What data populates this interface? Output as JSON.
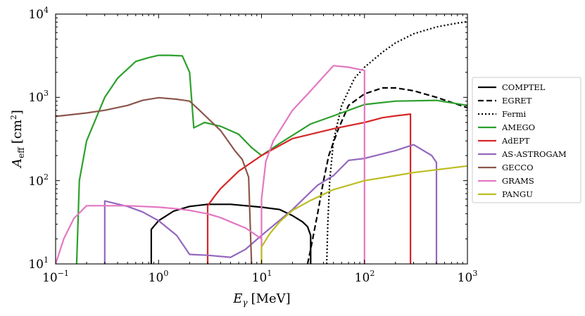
{
  "chart_data": {
    "type": "line",
    "xscale": "log",
    "yscale": "log",
    "xlim": [
      0.1,
      1000
    ],
    "ylim": [
      10,
      10000
    ],
    "x_ticks": [
      {
        "value": 0.1,
        "base": "10",
        "exp": "−1"
      },
      {
        "value": 1,
        "base": "10",
        "exp": "0"
      },
      {
        "value": 10,
        "base": "10",
        "exp": "1"
      },
      {
        "value": 100,
        "base": "10",
        "exp": "2"
      },
      {
        "value": 1000,
        "base": "10",
        "exp": "3"
      }
    ],
    "y_ticks": [
      {
        "value": 10,
        "base": "10",
        "exp": "1"
      },
      {
        "value": 100,
        "base": "10",
        "exp": "2"
      },
      {
        "value": 1000,
        "base": "10",
        "exp": "3"
      },
      {
        "value": 10000,
        "base": "10",
        "exp": "4"
      }
    ],
    "xlabel": {
      "symbol": "E",
      "sub": "γ",
      "unit": "[MeV]"
    },
    "ylabel": {
      "symbol": "A",
      "sub": "eff",
      "unit_open": "[cm",
      "unit_sup": "2",
      "unit_close": "]"
    },
    "legend_position": "outside-right",
    "series": [
      {
        "name": "COMPTEL",
        "color": "#000000",
        "dash": "solid",
        "points": [
          [
            0.85,
            10
          ],
          [
            0.85,
            26
          ],
          [
            1.0,
            33
          ],
          [
            1.4,
            43
          ],
          [
            2.0,
            49
          ],
          [
            3.0,
            52
          ],
          [
            5.0,
            52
          ],
          [
            10,
            48
          ],
          [
            15,
            45
          ],
          [
            20,
            38
          ],
          [
            25,
            32
          ],
          [
            28,
            28
          ],
          [
            30,
            22
          ],
          [
            30,
            10
          ]
        ]
      },
      {
        "name": "EGRET",
        "color": "#000000",
        "dash": "dashed",
        "points": [
          [
            28,
            10
          ],
          [
            30,
            15
          ],
          [
            35,
            40
          ],
          [
            40,
            100
          ],
          [
            45,
            200
          ],
          [
            55,
            400
          ],
          [
            70,
            800
          ],
          [
            100,
            1100
          ],
          [
            150,
            1300
          ],
          [
            200,
            1300
          ],
          [
            300,
            1200
          ],
          [
            500,
            1000
          ],
          [
            1000,
            750
          ]
        ]
      },
      {
        "name": "Fermi",
        "color": "#000000",
        "dash": "dotted",
        "points": [
          [
            43,
            10
          ],
          [
            44,
            30
          ],
          [
            46,
            100
          ],
          [
            50,
            300
          ],
          [
            60,
            800
          ],
          [
            80,
            1700
          ],
          [
            100,
            2300
          ],
          [
            150,
            3500
          ],
          [
            200,
            4500
          ],
          [
            300,
            5800
          ],
          [
            500,
            7000
          ],
          [
            800,
            7800
          ],
          [
            1000,
            8100
          ]
        ]
      },
      {
        "name": "AMEGO",
        "color": "#2ca02c",
        "dash": "solid",
        "points": [
          [
            0.16,
            10
          ],
          [
            0.17,
            100
          ],
          [
            0.2,
            300
          ],
          [
            0.3,
            1000
          ],
          [
            0.4,
            1700
          ],
          [
            0.6,
            2700
          ],
          [
            0.8,
            3000
          ],
          [
            1.0,
            3200
          ],
          [
            1.3,
            3200
          ],
          [
            1.7,
            3150
          ],
          [
            2.0,
            2000
          ],
          [
            2.2,
            430
          ],
          [
            2.8,
            500
          ],
          [
            4.0,
            450
          ],
          [
            6.0,
            360
          ],
          [
            8.0,
            250
          ],
          [
            10,
            200
          ],
          [
            15,
            280
          ],
          [
            30,
            480
          ],
          [
            50,
            600
          ],
          [
            100,
            820
          ],
          [
            200,
            900
          ],
          [
            500,
            920
          ],
          [
            1000,
            800
          ]
        ]
      },
      {
        "name": "AdEPT",
        "color": "#d62728",
        "dash": "solid",
        "points": [
          [
            3.0,
            10
          ],
          [
            3.0,
            50
          ],
          [
            3.5,
            65
          ],
          [
            4.0,
            80
          ],
          [
            6.0,
            130
          ],
          [
            10,
            200
          ],
          [
            20,
            320
          ],
          [
            50,
            420
          ],
          [
            100,
            500
          ],
          [
            150,
            570
          ],
          [
            200,
            600
          ],
          [
            280,
            630
          ],
          [
            280,
            10
          ]
        ]
      },
      {
        "name": "AS-ASTROGAM",
        "color": "#9467bd",
        "dash": "solid",
        "points": [
          [
            0.3,
            10
          ],
          [
            0.3,
            57
          ],
          [
            0.5,
            49
          ],
          [
            0.7,
            42
          ],
          [
            1.0,
            33
          ],
          [
            1.5,
            22
          ],
          [
            2.0,
            13
          ],
          [
            3.0,
            12.7
          ],
          [
            5.0,
            12
          ],
          [
            7.0,
            15
          ],
          [
            10,
            22
          ],
          [
            20,
            45
          ],
          [
            35,
            88
          ],
          [
            50,
            115
          ],
          [
            70,
            175
          ],
          [
            100,
            185
          ],
          [
            200,
            230
          ],
          [
            300,
            270
          ],
          [
            450,
            200
          ],
          [
            500,
            165
          ],
          [
            500,
            10
          ]
        ]
      },
      {
        "name": "GECCO",
        "color": "#8c564b",
        "dash": "solid",
        "points": [
          [
            0.1,
            590
          ],
          [
            0.2,
            650
          ],
          [
            0.3,
            700
          ],
          [
            0.5,
            800
          ],
          [
            0.7,
            920
          ],
          [
            1.0,
            990
          ],
          [
            1.5,
            950
          ],
          [
            2.0,
            900
          ],
          [
            2.5,
            700
          ],
          [
            4.0,
            400
          ],
          [
            5.5,
            230
          ],
          [
            6.5,
            180
          ],
          [
            7.5,
            110
          ],
          [
            8.0,
            10
          ]
        ]
      },
      {
        "name": "GRAMS",
        "color": "#e377c2",
        "dash": "solid",
        "points": [
          [
            0.1,
            10
          ],
          [
            0.12,
            20
          ],
          [
            0.15,
            35
          ],
          [
            0.2,
            50
          ],
          [
            0.5,
            50
          ],
          [
            1.0,
            48
          ],
          [
            1.5,
            46
          ],
          [
            2.0,
            44
          ],
          [
            3.0,
            40
          ],
          [
            4.0,
            36
          ],
          [
            5.0,
            32
          ],
          [
            7.0,
            27
          ],
          [
            10,
            20
          ],
          [
            10,
            10
          ],
          [
            10,
            60
          ],
          [
            11,
            170
          ],
          [
            13,
            300
          ],
          [
            20,
            700
          ],
          [
            30,
            1200
          ],
          [
            50,
            2400
          ],
          [
            70,
            2300
          ],
          [
            100,
            2100
          ],
          [
            100,
            10
          ]
        ]
      },
      {
        "name": "PANGU",
        "color": "#bcbd22",
        "dash": "solid",
        "points": [
          [
            10,
            10
          ],
          [
            10,
            16
          ],
          [
            12,
            23
          ],
          [
            15,
            32
          ],
          [
            20,
            44
          ],
          [
            30,
            58
          ],
          [
            50,
            78
          ],
          [
            100,
            100
          ],
          [
            200,
            115
          ],
          [
            300,
            125
          ],
          [
            500,
            135
          ],
          [
            1000,
            150
          ]
        ]
      }
    ]
  }
}
